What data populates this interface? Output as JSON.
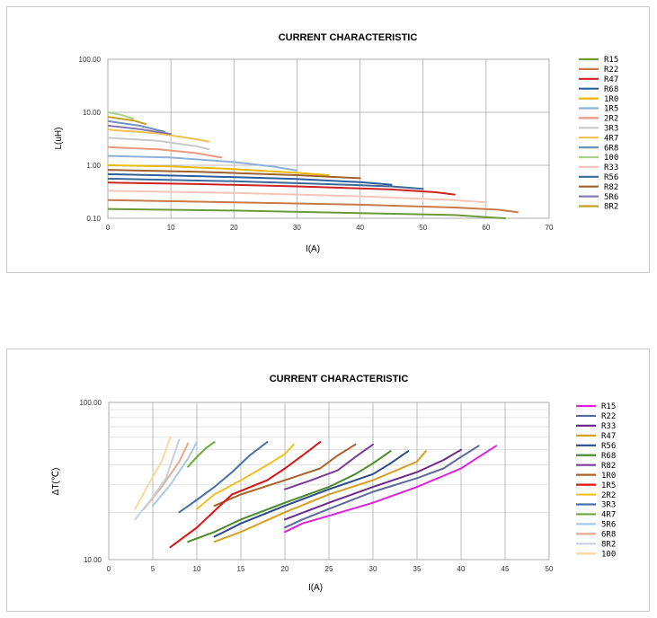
{
  "chart_data": [
    {
      "type": "line",
      "title": "CURRENT CHARACTERISTIC",
      "xlabel": "I(A)",
      "ylabel": "L(uH)",
      "xlim": [
        0,
        70
      ],
      "ylim": [
        0.1,
        100
      ],
      "yscale": "log",
      "xticks": [
        "0",
        "10",
        "20",
        "30",
        "40",
        "50",
        "60",
        "70"
      ],
      "yticks": [
        "0.10",
        "1.00",
        "10.00",
        "100.00"
      ],
      "grid": true,
      "legend": "right",
      "series": [
        {
          "name": "R15",
          "color": "#6a9a3a",
          "x": [
            0,
            20,
            40,
            55,
            60,
            63
          ],
          "y": [
            0.15,
            0.14,
            0.125,
            0.115,
            0.105,
            0.1
          ]
        },
        {
          "name": "R22",
          "color": "#c87a4a",
          "x": [
            0,
            20,
            40,
            55,
            62,
            65
          ],
          "y": [
            0.22,
            0.2,
            0.18,
            0.16,
            0.145,
            0.13
          ]
        },
        {
          "name": "R47",
          "color": "#cc2222",
          "x": [
            0,
            15,
            30,
            45,
            52,
            55
          ],
          "y": [
            0.47,
            0.44,
            0.4,
            0.35,
            0.31,
            0.28
          ]
        },
        {
          "name": "R68",
          "color": "#2d5d9d",
          "x": [
            0,
            15,
            30,
            40,
            45
          ],
          "y": [
            0.68,
            0.62,
            0.55,
            0.48,
            0.43
          ]
        },
        {
          "name": "1R0",
          "color": "#e8b800",
          "x": [
            0,
            10,
            20,
            30,
            35
          ],
          "y": [
            1.0,
            0.95,
            0.85,
            0.72,
            0.65
          ]
        },
        {
          "name": "1R5",
          "color": "#8fb0d8",
          "x": [
            0,
            10,
            20,
            26,
            30
          ],
          "y": [
            1.5,
            1.4,
            1.15,
            0.95,
            0.8
          ]
        },
        {
          "name": "2R2",
          "color": "#e89a80",
          "x": [
            0,
            8,
            14,
            18
          ],
          "y": [
            2.2,
            2.0,
            1.7,
            1.4
          ]
        },
        {
          "name": "3R3",
          "color": "#c8c8c8",
          "x": [
            0,
            8,
            14,
            16
          ],
          "y": [
            3.3,
            2.9,
            2.3,
            2.0
          ]
        },
        {
          "name": "4R7",
          "color": "#f0c050",
          "x": [
            0,
            8,
            14,
            16
          ],
          "y": [
            4.7,
            4.0,
            3.1,
            2.8
          ]
        },
        {
          "name": "6R8",
          "color": "#7090c0",
          "x": [
            0,
            5,
            9
          ],
          "y": [
            6.8,
            5.6,
            4.3
          ]
        },
        {
          "name": "100",
          "color": "#a8d08a",
          "x": [
            0,
            2,
            4
          ],
          "y": [
            10.0,
            9.0,
            7.6
          ]
        },
        {
          "name": "R33",
          "color": "#f4c4b8",
          "x": [
            0,
            20,
            40,
            55,
            60
          ],
          "y": [
            0.33,
            0.3,
            0.26,
            0.22,
            0.2
          ]
        },
        {
          "name": "R56",
          "color": "#3a6a9a",
          "x": [
            0,
            20,
            35,
            45,
            50
          ],
          "y": [
            0.56,
            0.5,
            0.44,
            0.4,
            0.36
          ]
        },
        {
          "name": "R82",
          "color": "#a0602a",
          "x": [
            0,
            15,
            30,
            40
          ],
          "y": [
            0.82,
            0.75,
            0.65,
            0.57
          ]
        },
        {
          "name": "5R6",
          "color": "#8878b0",
          "x": [
            0,
            5,
            10
          ],
          "y": [
            5.6,
            4.8,
            3.9
          ]
        },
        {
          "name": "8R2",
          "color": "#c0a020",
          "x": [
            0,
            4,
            6
          ],
          "y": [
            8.2,
            7.0,
            6.0
          ]
        }
      ]
    },
    {
      "type": "line",
      "title": "CURRENT CHARACTERISTIC",
      "xlabel": "I(A)",
      "ylabel": "ΔT(℃)",
      "xlim": [
        0,
        50
      ],
      "ylim": [
        10,
        100
      ],
      "yscale": "log",
      "xticks": [
        "0",
        "5",
        "10",
        "15",
        "20",
        "25",
        "30",
        "35",
        "40",
        "45",
        "50"
      ],
      "yticks": [
        "10.00",
        "100.00"
      ],
      "grid": true,
      "legend": "right",
      "series": [
        {
          "name": "R15",
          "color": "#e020e0",
          "x": [
            20,
            22,
            25,
            30,
            35,
            40,
            42,
            44
          ],
          "y": [
            15,
            17,
            19,
            23,
            29,
            38,
            45,
            53
          ]
        },
        {
          "name": "R22",
          "color": "#5a6a9a",
          "x": [
            20,
            22,
            25,
            30,
            35,
            38,
            40,
            42
          ],
          "y": [
            16,
            18,
            21,
            27,
            33,
            38,
            45,
            53
          ]
        },
        {
          "name": "R33",
          "color": "#6a2a8a",
          "x": [
            20,
            25,
            30,
            35,
            38,
            40
          ],
          "y": [
            18,
            23,
            29,
            36,
            43,
            50
          ]
        },
        {
          "name": "R47",
          "color": "#d4a020",
          "x": [
            12,
            15,
            20,
            25,
            30,
            35,
            36
          ],
          "y": [
            13,
            15,
            20,
            26,
            32,
            42,
            49
          ]
        },
        {
          "name": "R56",
          "color": "#2a4a8a",
          "x": [
            12,
            15,
            20,
            25,
            30,
            32,
            34
          ],
          "y": [
            14,
            17,
            22,
            28,
            35,
            41,
            49
          ]
        },
        {
          "name": "R68",
          "color": "#4a8a2a",
          "x": [
            9,
            12,
            15,
            20,
            25,
            28,
            30,
            32
          ],
          "y": [
            13,
            15,
            18,
            23,
            29,
            35,
            41,
            49
          ]
        },
        {
          "name": "R82",
          "color": "#7a3a9a",
          "x": [
            20,
            23,
            26,
            28,
            30
          ],
          "y": [
            28,
            32,
            37,
            45,
            54
          ]
        },
        {
          "name": "1R0",
          "color": "#a8622a",
          "x": [
            12,
            15,
            20,
            24,
            26,
            28
          ],
          "y": [
            22,
            26,
            32,
            38,
            46,
            54
          ]
        },
        {
          "name": "1R5",
          "color": "#dd1111",
          "x": [
            7,
            10,
            14,
            18,
            20,
            22,
            24
          ],
          "y": [
            12,
            16,
            26,
            32,
            38,
            46,
            56
          ]
        },
        {
          "name": "2R2",
          "color": "#f0c020",
          "x": [
            10,
            12,
            15,
            18,
            20,
            21
          ],
          "y": [
            21,
            26,
            32,
            40,
            47,
            54
          ]
        },
        {
          "name": "3R3",
          "color": "#4a70a8",
          "x": [
            8,
            10,
            12,
            14,
            16,
            18
          ],
          "y": [
            20,
            24,
            29,
            36,
            46,
            56
          ]
        },
        {
          "name": "4R7",
          "color": "#6aaa3a",
          "x": [
            9,
            10,
            11,
            12
          ],
          "y": [
            39,
            45,
            51,
            56
          ]
        },
        {
          "name": "5R6",
          "color": "#a8c8e8",
          "x": [
            5,
            7,
            9,
            10
          ],
          "y": [
            22,
            30,
            44,
            56
          ]
        },
        {
          "name": "6R8",
          "color": "#e8a890",
          "x": [
            4,
            6,
            8,
            9
          ],
          "y": [
            21,
            29,
            42,
            55
          ]
        },
        {
          "name": "8R2",
          "color": "#c8d0d8",
          "x": [
            3,
            5,
            6.5,
            8
          ],
          "y": [
            18,
            25,
            33,
            58
          ]
        },
        {
          "name": "100",
          "color": "#f8d8a0",
          "x": [
            3,
            4.5,
            6,
            7
          ],
          "y": [
            21,
            30,
            42,
            60
          ]
        }
      ]
    }
  ]
}
